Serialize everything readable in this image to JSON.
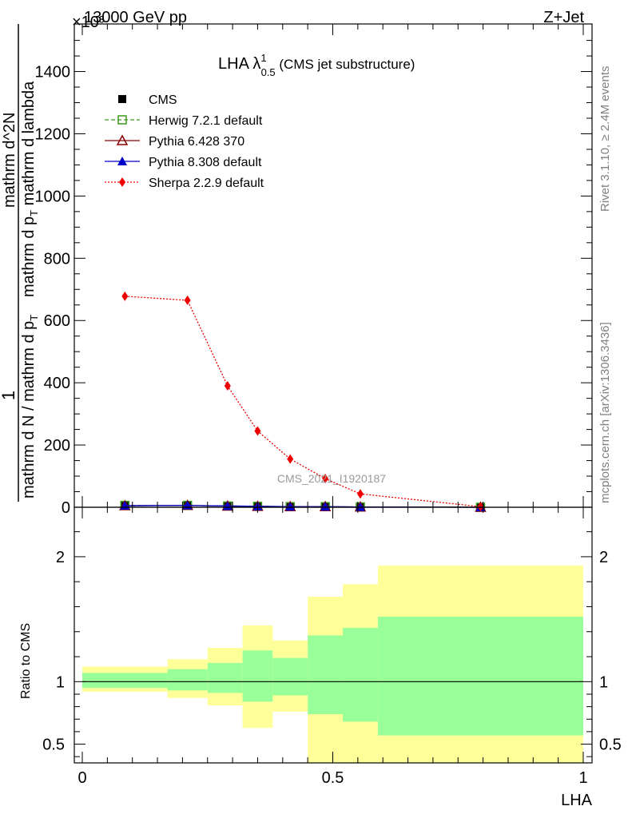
{
  "header": {
    "energy_label": "13000 GeV pp",
    "process_label": "Z+Jet",
    "exponent_label": "×10³"
  },
  "side_labels": {
    "rivet": "Rivet 3.1.10, ≥ 2.4M events",
    "mcplots": "mcplots.cern.ch [arXiv:1306.3436]"
  },
  "watermark": "CMS_2021_I1920187",
  "chart_data": [
    {
      "type": "line",
      "title": "LHA λ",
      "title_sup": "1",
      "title_sub": "0.5",
      "title_suffix": " (CMS jet substructure)",
      "ylabel_numerator": "1",
      "ylabel_line1": "mathrm d N / mathrm d p",
      "ylabel_line1_sub": "T",
      "ylabel_line2": "mathrm d^2N",
      "ylabel_line3": "mathrm d p",
      "ylabel_line3_sub": "T",
      "ylabel_line3_tail": " mathrm d lambda",
      "xlim": [
        0,
        1
      ],
      "ylim": [
        0,
        1540
      ],
      "yticks": [
        0,
        200,
        400,
        600,
        800,
        1000,
        1200,
        1400
      ],
      "legend_position": "top-left",
      "series": [
        {
          "name": "CMS",
          "color": "#000000",
          "marker": "square-filled",
          "line": "none",
          "x": [
            0.085,
            0.21,
            0.29,
            0.35,
            0.415,
            0.485,
            0.555,
            0.795
          ],
          "y": [
            5,
            6,
            4,
            3,
            2,
            2,
            1,
            0
          ]
        },
        {
          "name": "Herwig 7.2.1 default",
          "color": "#3a9a1a",
          "marker": "square-open",
          "line": "dashed",
          "x": [
            0.085,
            0.21,
            0.29,
            0.35,
            0.415,
            0.485,
            0.555,
            0.795
          ],
          "y": [
            6,
            6,
            4,
            3,
            2,
            2,
            1,
            0
          ]
        },
        {
          "name": "Pythia 6.428 370",
          "color": "#8b0000",
          "marker": "triangle-open",
          "line": "solid",
          "x": [
            0.085,
            0.21,
            0.29,
            0.35,
            0.415,
            0.485,
            0.555,
            0.795
          ],
          "y": [
            5,
            6,
            4,
            3,
            2,
            2,
            1,
            0
          ]
        },
        {
          "name": "Pythia 8.308 default",
          "color": "#0000cc",
          "marker": "triangle-filled",
          "line": "solid",
          "x": [
            0.085,
            0.21,
            0.29,
            0.35,
            0.415,
            0.485,
            0.555,
            0.795
          ],
          "y": [
            5,
            6,
            4,
            3,
            2,
            2,
            1,
            0
          ]
        },
        {
          "name": "Sherpa 2.2.9 default",
          "color": "#ee0000",
          "marker": "diamond-filled",
          "line": "dotted",
          "x": [
            0.085,
            0.21,
            0.29,
            0.35,
            0.415,
            0.485,
            0.555,
            0.795
          ],
          "y": [
            678,
            665,
            390,
            245,
            155,
            92,
            43,
            2
          ]
        }
      ]
    },
    {
      "type": "area",
      "xlabel": "LHA",
      "ylabel": "Ratio to CMS",
      "xlim": [
        0,
        1
      ],
      "ylim": [
        0.35,
        2.3
      ],
      "xticks": [
        "0",
        "0.5",
        "1"
      ],
      "yticks": [
        "0.5",
        "1",
        "2"
      ],
      "reference_line": 1,
      "bins": [
        {
          "lo": 0.0,
          "hi": 0.17,
          "inner": [
            0.95,
            1.07
          ],
          "outer": [
            0.92,
            1.12
          ]
        },
        {
          "lo": 0.17,
          "hi": 0.25,
          "inner": [
            0.93,
            1.1
          ],
          "outer": [
            0.87,
            1.18
          ]
        },
        {
          "lo": 0.25,
          "hi": 0.32,
          "inner": [
            0.91,
            1.15
          ],
          "outer": [
            0.81,
            1.27
          ]
        },
        {
          "lo": 0.32,
          "hi": 0.38,
          "inner": [
            0.84,
            1.25
          ],
          "outer": [
            0.63,
            1.45
          ]
        },
        {
          "lo": 0.38,
          "hi": 0.45,
          "inner": [
            0.89,
            1.19
          ],
          "outer": [
            0.76,
            1.33
          ]
        },
        {
          "lo": 0.45,
          "hi": 0.52,
          "inner": [
            0.74,
            1.37
          ],
          "outer": [
            0.35,
            1.68
          ]
        },
        {
          "lo": 0.52,
          "hi": 0.59,
          "inner": [
            0.68,
            1.43
          ],
          "outer": [
            0.35,
            1.78
          ]
        },
        {
          "lo": 0.59,
          "hi": 1.0,
          "inner": [
            0.57,
            1.52
          ],
          "outer": [
            0.35,
            1.93
          ]
        }
      ],
      "colors": {
        "inner": "#99ff99",
        "outer": "#ffff99"
      }
    }
  ]
}
